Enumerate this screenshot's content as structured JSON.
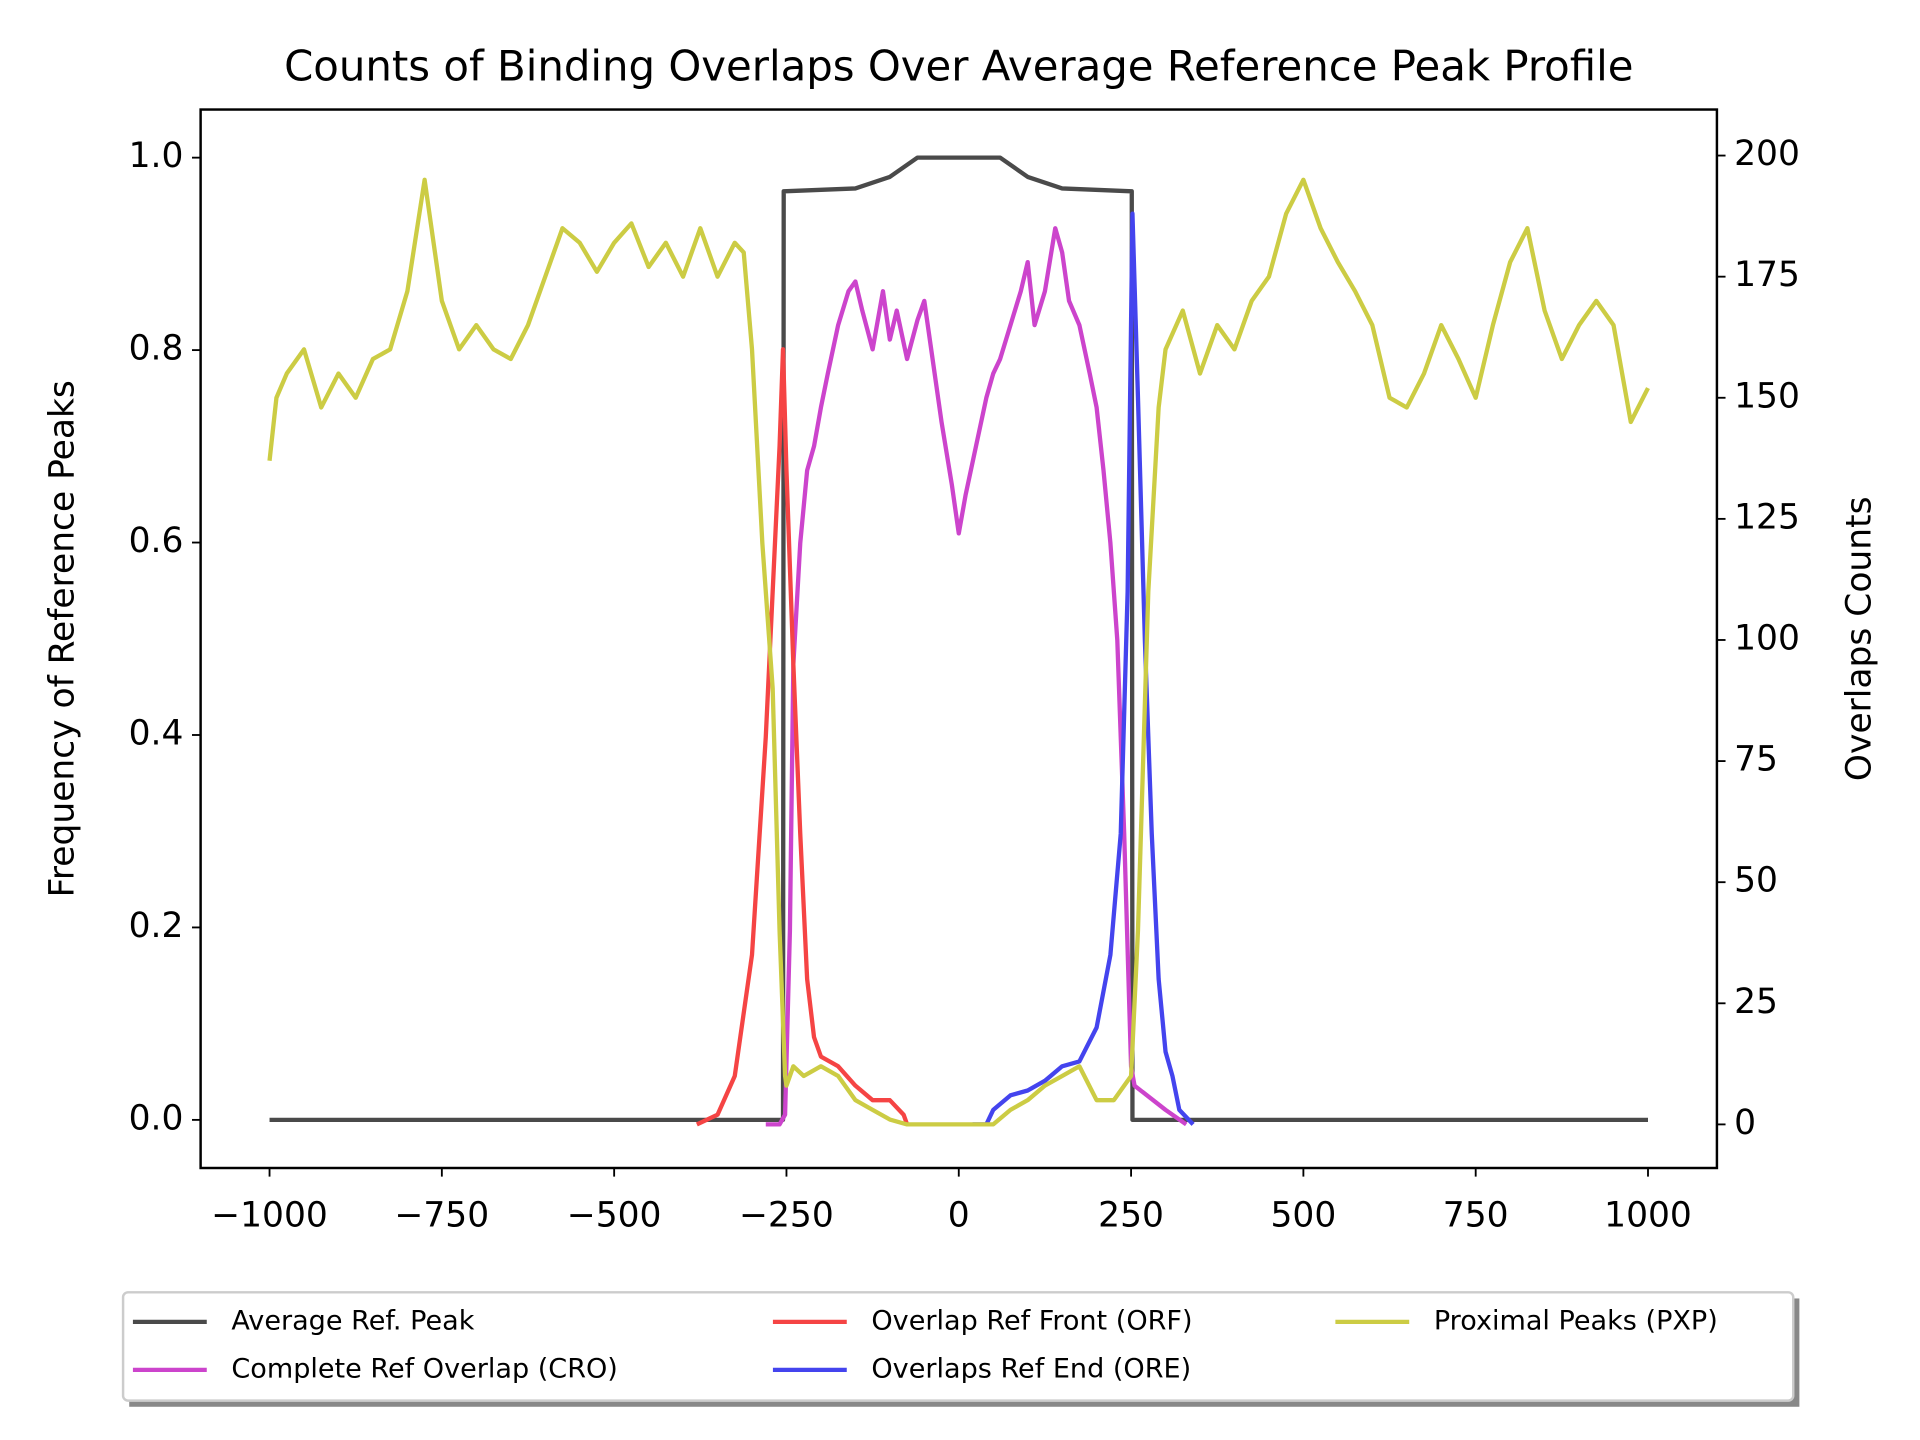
{
  "chart_data": {
    "type": "line",
    "title": "Counts of Binding Overlaps Over Average Reference Peak Profile",
    "ylabel": "Frequency of Reference Peaks",
    "y2label": "Overlaps Counts",
    "xlim": [
      -1100,
      1100
    ],
    "xticks": [
      {
        "value": -1000,
        "label": "−1000"
      },
      {
        "value": -750,
        "label": "−750"
      },
      {
        "value": -500,
        "label": "−500"
      },
      {
        "value": -250,
        "label": "−250"
      },
      0,
      250,
      500,
      750,
      1000
    ],
    "ylim": [
      -0.05,
      1.05
    ],
    "yticks": [
      {
        "value": 0,
        "label": "0.0"
      },
      0.2,
      0.4,
      0.6,
      0.8,
      {
        "value": 1,
        "label": "1.0"
      }
    ],
    "y2lim": [
      -9,
      209.5
    ],
    "y2ticks": [
      0,
      25,
      50,
      75,
      100,
      125,
      150,
      175,
      200
    ],
    "legend": "bottom",
    "series": [
      {
        "name": "Average Ref. Peak",
        "color": "#4a4a4a",
        "x": [
          -1000,
          -255,
          -254,
          -150,
          -100,
          -60,
          60,
          100,
          150,
          251,
          252,
          1000
        ],
        "values": [
          0,
          0,
          0.965,
          0.968,
          0.98,
          1.0,
          1.0,
          0.98,
          0.968,
          0.965,
          0,
          0
        ]
      },
      {
        "name": "Complete Ref Overlap (CRO)",
        "color": "#cc44cc",
        "axis": "y2",
        "x": [
          -280,
          -260,
          -252,
          -245,
          -240,
          -230,
          -220,
          -210,
          -200,
          -190,
          -175,
          -160,
          -150,
          -140,
          -125,
          -110,
          -100,
          -90,
          -75,
          -60,
          -50,
          -40,
          -25,
          -10,
          0,
          10,
          25,
          40,
          50,
          60,
          75,
          90,
          100,
          110,
          125,
          140,
          150,
          160,
          175,
          190,
          200,
          210,
          220,
          230,
          240,
          250,
          255,
          300,
          330
        ],
        "values": [
          0,
          0,
          2,
          40,
          95,
          120,
          135,
          140,
          148,
          155,
          165,
          172,
          174,
          168,
          160,
          172,
          162,
          168,
          158,
          166,
          170,
          160,
          145,
          132,
          122,
          130,
          140,
          150,
          155,
          158,
          165,
          172,
          178,
          165,
          172,
          185,
          180,
          170,
          165,
          155,
          148,
          135,
          120,
          100,
          60,
          12,
          8,
          3,
          0
        ]
      },
      {
        "name": "Overlap Ref Front (ORF)",
        "color": "#f54444",
        "axis": "y2",
        "x": [
          -380,
          -350,
          -325,
          -300,
          -280,
          -270,
          -260,
          -255,
          -250,
          -240,
          -230,
          -220,
          -210,
          -200,
          -175,
          -150,
          -125,
          -100,
          -80,
          -75
        ],
        "values": [
          0,
          2,
          10,
          35,
          80,
          110,
          140,
          160,
          135,
          95,
          60,
          30,
          18,
          14,
          12,
          8,
          5,
          5,
          2,
          0
        ]
      },
      {
        "name": "Overlaps Ref End (ORE)",
        "color": "#4444ee",
        "axis": "y2",
        "x": [
          20,
          40,
          50,
          75,
          100,
          125,
          150,
          175,
          200,
          220,
          235,
          245,
          252,
          260,
          270,
          280,
          290,
          300,
          310,
          320,
          340
        ],
        "values": [
          0,
          0,
          3,
          6,
          7,
          9,
          12,
          13,
          20,
          35,
          60,
          110,
          188,
          150,
          100,
          60,
          30,
          15,
          10,
          3,
          0
        ]
      },
      {
        "name": "Proximal Peaks (PXP)",
        "color": "#cccc44",
        "axis": "y2",
        "x": [
          -1000,
          -990,
          -975,
          -950,
          -925,
          -900,
          -875,
          -850,
          -825,
          -800,
          -775,
          -750,
          -725,
          -700,
          -675,
          -650,
          -625,
          -600,
          -575,
          -550,
          -525,
          -500,
          -475,
          -450,
          -425,
          -400,
          -375,
          -350,
          -325,
          -312,
          -300,
          -285,
          -270,
          -260,
          -252,
          -250,
          -240,
          -225,
          -200,
          -175,
          -150,
          -125,
          -100,
          -75,
          0,
          50,
          75,
          100,
          125,
          150,
          175,
          200,
          225,
          250,
          260,
          275,
          290,
          300,
          325,
          350,
          375,
          400,
          425,
          450,
          475,
          500,
          525,
          550,
          575,
          600,
          625,
          650,
          675,
          700,
          725,
          750,
          775,
          800,
          825,
          850,
          875,
          900,
          925,
          950,
          975,
          1000
        ],
        "values": [
          137,
          150,
          155,
          160,
          148,
          155,
          150,
          158,
          160,
          172,
          195,
          170,
          160,
          165,
          160,
          158,
          165,
          175,
          185,
          182,
          176,
          182,
          186,
          177,
          182,
          175,
          185,
          175,
          182,
          180,
          160,
          120,
          90,
          40,
          10,
          8,
          12,
          10,
          12,
          10,
          5,
          3,
          1,
          0,
          0,
          0,
          3,
          5,
          8,
          10,
          12,
          5,
          5,
          10,
          40,
          110,
          148,
          160,
          168,
          155,
          165,
          160,
          170,
          175,
          188,
          195,
          185,
          178,
          172,
          165,
          150,
          148,
          155,
          165,
          158,
          150,
          165,
          178,
          185,
          168,
          158,
          165,
          170,
          165,
          145,
          152
        ]
      }
    ]
  }
}
